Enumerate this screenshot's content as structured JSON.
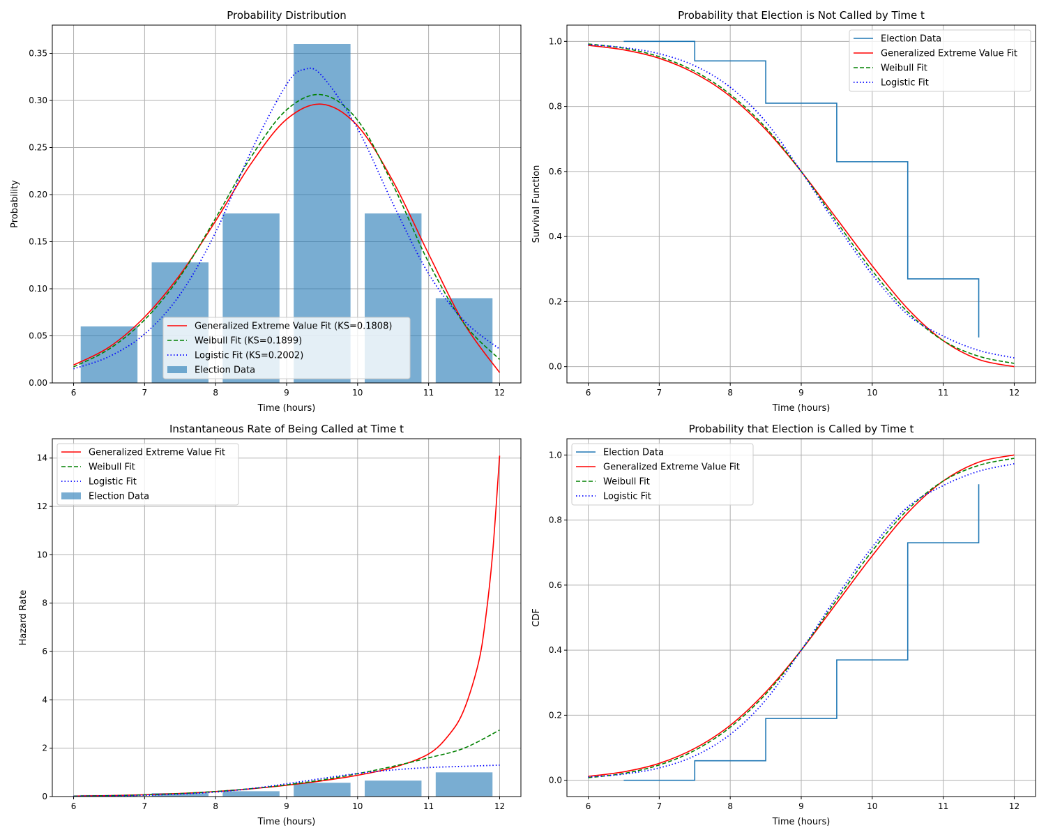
{
  "colors": {
    "bars": "#1f77b4",
    "step": "#1f77b4",
    "gev": "#ff0000",
    "weibull": "#008000",
    "logistic": "#0000ff",
    "grid": "#b0b0b0"
  },
  "chart_data": [
    {
      "id": "pdf",
      "type": "bar",
      "title": "Probability Distribution",
      "xlabel": "Time (hours)",
      "ylabel": "Probability",
      "xlim": [
        5.7,
        12.3
      ],
      "ylim": [
        0,
        0.38
      ],
      "xticks": [
        6,
        7,
        8,
        9,
        10,
        11,
        12
      ],
      "xtick_labels": [
        "6",
        "7",
        "8",
        "9",
        "10",
        "11",
        "12"
      ],
      "yticks": [
        0,
        0.05,
        0.1,
        0.15,
        0.2,
        0.25,
        0.3,
        0.35
      ],
      "ytick_labels": [
        "0.00",
        "0.05",
        "0.10",
        "0.15",
        "0.20",
        "0.25",
        "0.30",
        "0.35"
      ],
      "grid": true,
      "legend_position": "lower-center",
      "bars": {
        "name": "Election Data",
        "centers": [
          6.5,
          7.5,
          8.5,
          9.5,
          10.5,
          11.5
        ],
        "width": 0.8,
        "values": [
          0.06,
          0.128,
          0.18,
          0.36,
          0.18,
          0.09
        ]
      },
      "series": [
        {
          "name": "Generalized Extreme Value Fit (KS=0.1808)",
          "key": "gev",
          "x": [
            6,
            6.5,
            7,
            7.5,
            8,
            8.5,
            9,
            9.5,
            10,
            10.5,
            11,
            11.5,
            12
          ],
          "y": [
            0.019,
            0.038,
            0.07,
            0.115,
            0.172,
            0.233,
            0.28,
            0.296,
            0.273,
            0.214,
            0.137,
            0.063,
            0.011
          ]
        },
        {
          "name": "Weibull Fit (KS=0.1899)",
          "key": "weibull",
          "x": [
            6,
            6.5,
            7,
            7.5,
            8,
            8.5,
            9,
            9.5,
            10,
            10.5,
            11,
            11.5,
            12
          ],
          "y": [
            0.017,
            0.036,
            0.067,
            0.113,
            0.175,
            0.24,
            0.29,
            0.306,
            0.279,
            0.21,
            0.128,
            0.063,
            0.025
          ]
        },
        {
          "name": "Logistic Fit (KS=0.2002)",
          "key": "logistic",
          "x": [
            6,
            6.5,
            7,
            7.5,
            8,
            8.5,
            9,
            9.25,
            9.5,
            10,
            10.5,
            11,
            11.5,
            12
          ],
          "y": [
            0.015,
            0.028,
            0.052,
            0.094,
            0.16,
            0.246,
            0.317,
            0.333,
            0.326,
            0.27,
            0.19,
            0.116,
            0.066,
            0.036
          ]
        }
      ]
    },
    {
      "id": "survival",
      "type": "line",
      "title": "Probability that Election is Not Called by Time t",
      "xlabel": "Time (hours)",
      "ylabel": "Survival Function",
      "xlim": [
        5.7,
        12.3
      ],
      "ylim": [
        -0.05,
        1.05
      ],
      "xticks": [
        6,
        7,
        8,
        9,
        10,
        11,
        12
      ],
      "xtick_labels": [
        "6",
        "7",
        "8",
        "9",
        "10",
        "11",
        "12"
      ],
      "yticks": [
        0,
        0.2,
        0.4,
        0.6,
        0.8,
        1.0
      ],
      "ytick_labels": [
        "0.0",
        "0.2",
        "0.4",
        "0.6",
        "0.8",
        "1.0"
      ],
      "grid": true,
      "legend_position": "top-right",
      "step": {
        "name": "Election Data",
        "x": [
          6.5,
          7.5,
          8.5,
          9.5,
          10.5,
          11.5
        ],
        "y": [
          1.0,
          0.94,
          0.81,
          0.63,
          0.27,
          0.09
        ]
      },
      "series": [
        {
          "name": "Generalized Extreme Value Fit",
          "key": "gev",
          "x": [
            6,
            6.5,
            7,
            7.5,
            8,
            8.5,
            9,
            9.5,
            10,
            10.5,
            11,
            11.5,
            12
          ],
          "y": [
            0.988,
            0.974,
            0.948,
            0.902,
            0.831,
            0.729,
            0.6,
            0.455,
            0.31,
            0.178,
            0.08,
            0.022,
            0.0
          ]
        },
        {
          "name": "Weibull Fit",
          "key": "weibull",
          "x": [
            6,
            6.5,
            7,
            7.5,
            8,
            8.5,
            9,
            9.5,
            10,
            10.5,
            11,
            11.5,
            12
          ],
          "y": [
            0.992,
            0.979,
            0.953,
            0.908,
            0.837,
            0.735,
            0.6,
            0.445,
            0.295,
            0.168,
            0.08,
            0.032,
            0.01
          ]
        },
        {
          "name": "Logistic Fit",
          "key": "logistic",
          "x": [
            6,
            6.5,
            7,
            7.5,
            8,
            8.5,
            9,
            9.5,
            10,
            10.5,
            11,
            11.5,
            12
          ],
          "y": [
            0.99,
            0.981,
            0.962,
            0.925,
            0.859,
            0.753,
            0.6,
            0.435,
            0.283,
            0.16,
            0.094,
            0.05,
            0.027
          ]
        }
      ]
    },
    {
      "id": "hazard",
      "type": "bar",
      "title": "Instantaneous Rate of Being Called at Time t",
      "xlabel": "Time (hours)",
      "ylabel": "Hazard Rate",
      "xlim": [
        5.7,
        12.3
      ],
      "ylim": [
        0,
        14.8
      ],
      "xticks": [
        6,
        7,
        8,
        9,
        10,
        11,
        12
      ],
      "xtick_labels": [
        "6",
        "7",
        "8",
        "9",
        "10",
        "11",
        "12"
      ],
      "yticks": [
        0,
        2,
        4,
        6,
        8,
        10,
        12,
        14
      ],
      "ytick_labels": [
        "0",
        "2",
        "4",
        "6",
        "8",
        "10",
        "12",
        "14"
      ],
      "grid": true,
      "legend_position": "top-left",
      "bars": {
        "name": "Election Data",
        "centers": [
          6.5,
          7.5,
          8.5,
          9.5,
          10.5,
          11.5
        ],
        "width": 0.8,
        "values": [
          0.06,
          0.14,
          0.22,
          0.57,
          0.66,
          1.0
        ]
      },
      "series": [
        {
          "name": "Generalized Extreme Value Fit",
          "key": "gev",
          "x": [
            6,
            6.5,
            7,
            7.5,
            8,
            8.5,
            9,
            9.5,
            10,
            10.5,
            11,
            11.3,
            11.5,
            11.7,
            11.8,
            11.9,
            12
          ],
          "y": [
            0.02,
            0.04,
            0.074,
            0.127,
            0.207,
            0.32,
            0.467,
            0.65,
            0.88,
            1.2,
            1.76,
            2.6,
            3.6,
            5.5,
            7.3,
            10.0,
            14.1
          ]
        },
        {
          "name": "Weibull Fit",
          "key": "weibull",
          "x": [
            6,
            6.5,
            7,
            7.5,
            8,
            8.5,
            9,
            9.5,
            10,
            10.5,
            11,
            11.5,
            12
          ],
          "y": [
            0.017,
            0.037,
            0.07,
            0.124,
            0.209,
            0.327,
            0.483,
            0.688,
            0.946,
            1.25,
            1.6,
            2.0,
            2.75
          ]
        },
        {
          "name": "Logistic Fit",
          "key": "logistic",
          "x": [
            6,
            6.5,
            7,
            7.5,
            8,
            8.5,
            9,
            9.5,
            10,
            10.5,
            11,
            11.5,
            12
          ],
          "y": [
            0.015,
            0.029,
            0.054,
            0.102,
            0.186,
            0.327,
            0.528,
            0.749,
            0.954,
            1.1,
            1.2,
            1.25,
            1.3
          ]
        }
      ]
    },
    {
      "id": "cdf",
      "type": "line",
      "title": "Probability that Election is Called by Time t",
      "xlabel": "Time (hours)",
      "ylabel": "CDF",
      "xlim": [
        5.7,
        12.3
      ],
      "ylim": [
        -0.05,
        1.05
      ],
      "xticks": [
        6,
        7,
        8,
        9,
        10,
        11,
        12
      ],
      "xtick_labels": [
        "6",
        "7",
        "8",
        "9",
        "10",
        "11",
        "12"
      ],
      "yticks": [
        0,
        0.2,
        0.4,
        0.6,
        0.8,
        1.0
      ],
      "ytick_labels": [
        "0.0",
        "0.2",
        "0.4",
        "0.6",
        "0.8",
        "1.0"
      ],
      "grid": true,
      "legend_position": "top-left",
      "step": {
        "name": "Election Data",
        "x": [
          6.5,
          7.5,
          8.5,
          9.5,
          10.5,
          11.5
        ],
        "y": [
          0.0,
          0.06,
          0.19,
          0.37,
          0.73,
          0.91
        ]
      },
      "series": [
        {
          "name": "Generalized Extreme Value Fit",
          "key": "gev",
          "x": [
            6,
            6.5,
            7,
            7.5,
            8,
            8.5,
            9,
            9.5,
            10,
            10.5,
            11,
            11.5,
            12
          ],
          "y": [
            0.012,
            0.026,
            0.052,
            0.098,
            0.169,
            0.271,
            0.4,
            0.545,
            0.69,
            0.822,
            0.92,
            0.978,
            1.0
          ]
        },
        {
          "name": "Weibull Fit",
          "key": "weibull",
          "x": [
            6,
            6.5,
            7,
            7.5,
            8,
            8.5,
            9,
            9.5,
            10,
            10.5,
            11,
            11.5,
            12
          ],
          "y": [
            0.008,
            0.021,
            0.047,
            0.092,
            0.163,
            0.265,
            0.4,
            0.555,
            0.705,
            0.832,
            0.92,
            0.968,
            0.99
          ]
        },
        {
          "name": "Logistic Fit",
          "key": "logistic",
          "x": [
            6,
            6.5,
            7,
            7.5,
            8,
            8.5,
            9,
            9.5,
            10,
            10.5,
            11,
            11.5,
            12
          ],
          "y": [
            0.01,
            0.019,
            0.038,
            0.075,
            0.141,
            0.247,
            0.4,
            0.565,
            0.717,
            0.84,
            0.906,
            0.95,
            0.973
          ]
        }
      ]
    }
  ]
}
